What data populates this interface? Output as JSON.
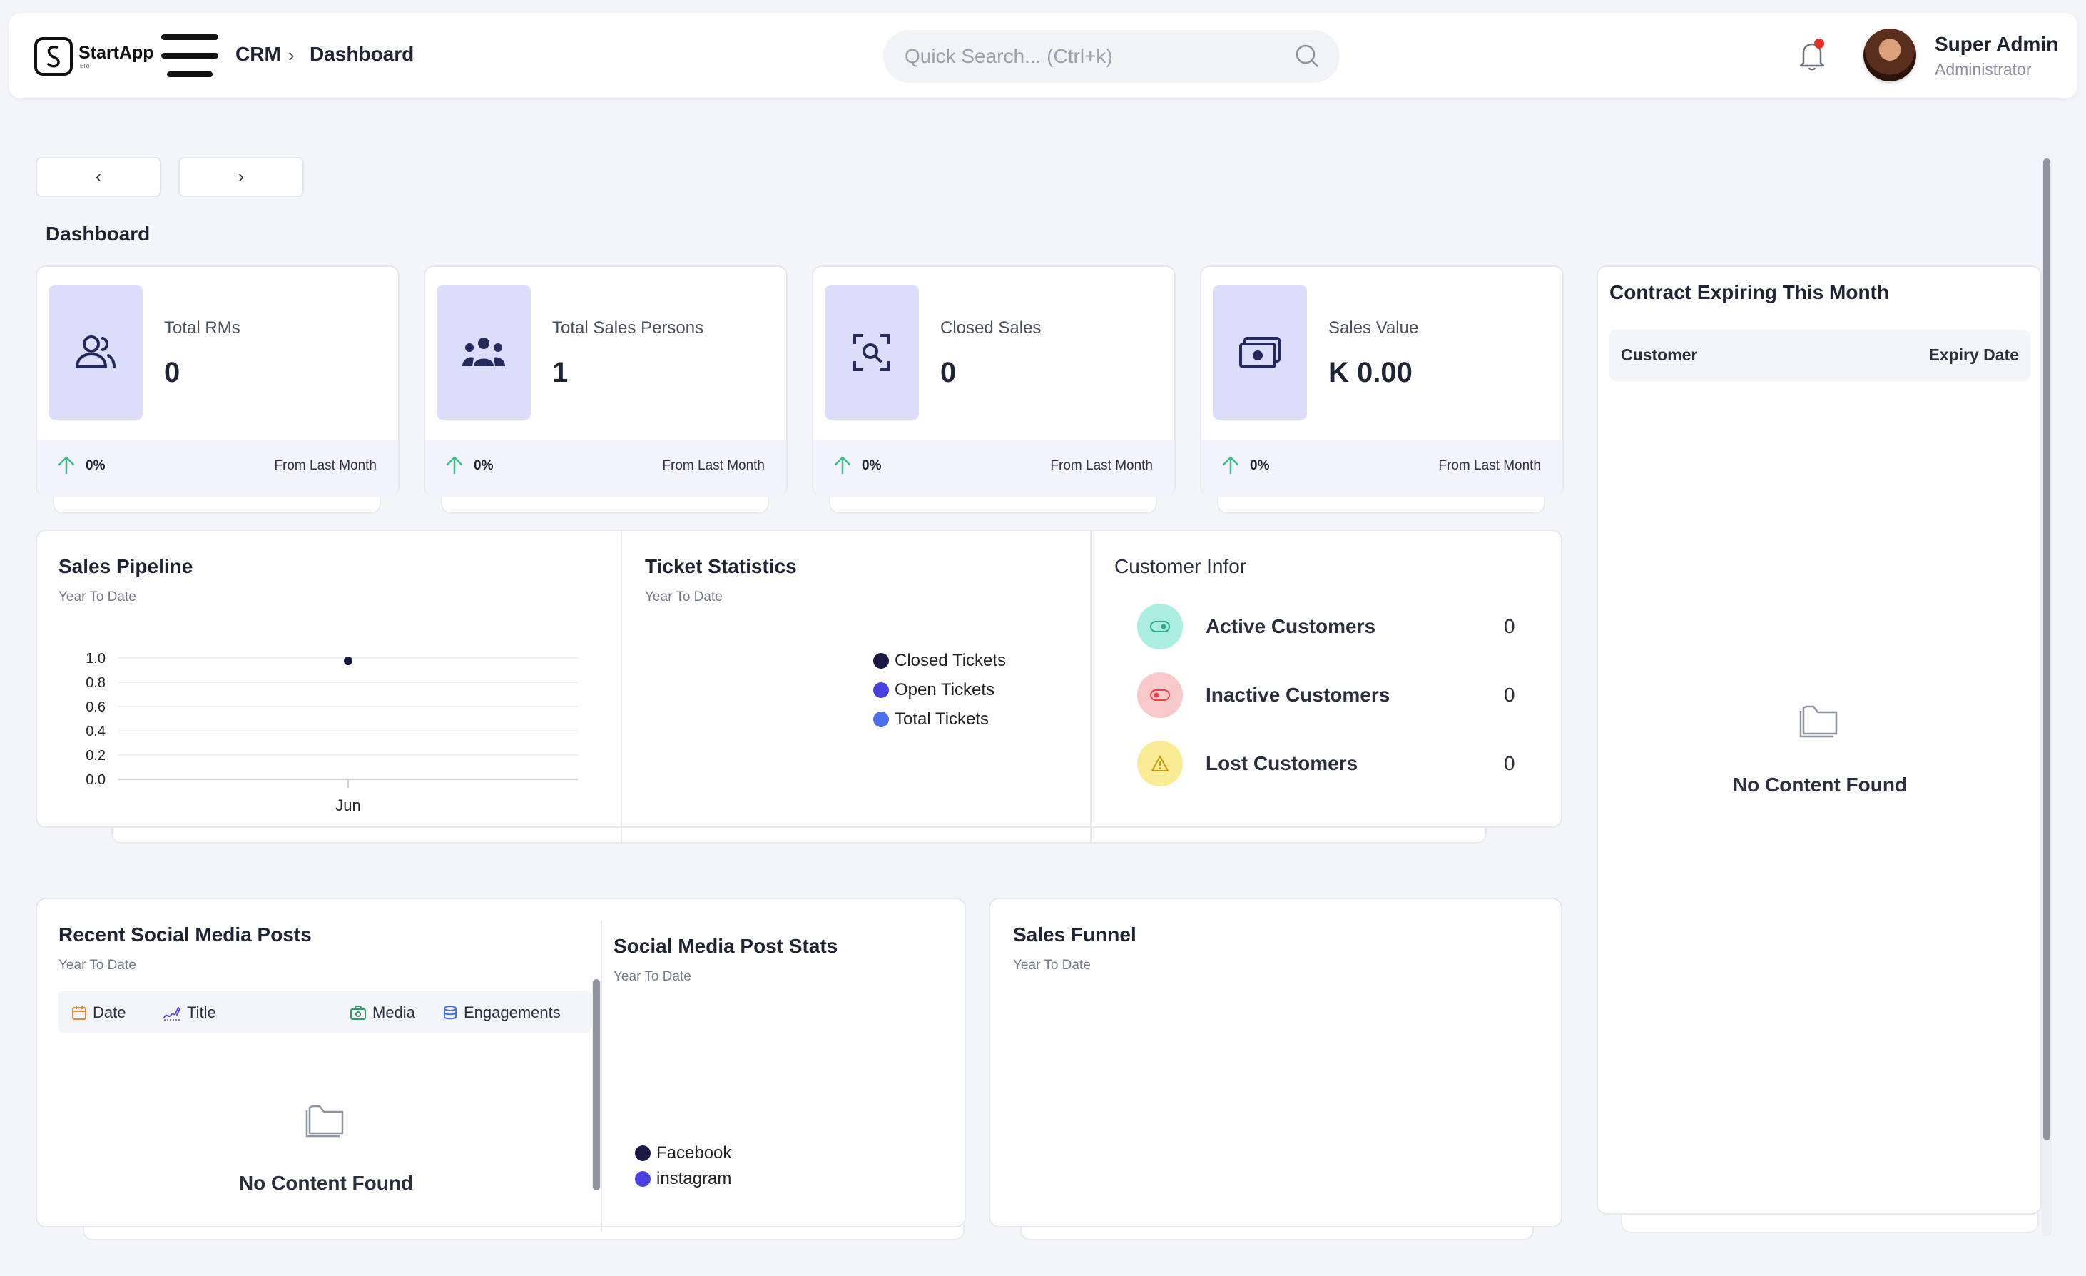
{
  "header": {
    "logo_text": "StartApp",
    "logo_sub": "ERP",
    "breadcrumb": [
      "CRM",
      "Dashboard"
    ],
    "search_placeholder": "Quick Search... (Ctrl+k)",
    "user_name": "Super Admin",
    "user_role": "Administrator"
  },
  "page": {
    "prev_label": "‹",
    "next_label": "›",
    "title": "Dashboard"
  },
  "stats": [
    {
      "label": "Total RMs",
      "value": "0",
      "pct": "0%",
      "from": "From Last Month",
      "icon": "users-icon"
    },
    {
      "label": "Total Sales Persons",
      "value": "1",
      "pct": "0%",
      "from": "From Last Month",
      "icon": "team-icon"
    },
    {
      "label": "Closed Sales",
      "value": "0",
      "pct": "0%",
      "from": "From Last Month",
      "icon": "scan-search-icon"
    },
    {
      "label": "Sales Value",
      "value": "K 0.00",
      "pct": "0%",
      "from": "From Last Month",
      "icon": "money-icon"
    }
  ],
  "sales_pipeline": {
    "title": "Sales Pipeline",
    "subtitle": "Year To Date"
  },
  "ticket_statistics": {
    "title": "Ticket Statistics",
    "subtitle": "Year To Date",
    "legend": [
      {
        "name": "Closed Tickets",
        "color": "#1b1a45"
      },
      {
        "name": "Open Tickets",
        "color": "#4a3fe0"
      },
      {
        "name": "Total Tickets",
        "color": "#4a6fe8"
      }
    ]
  },
  "customer_info": {
    "title": "Customer Infor",
    "rows": [
      {
        "name": "Active Customers",
        "count": "0",
        "bg": "#a9eee0",
        "icon": "toggle-on-icon"
      },
      {
        "name": "Inactive Customers",
        "count": "0",
        "bg": "#f9c8c8",
        "icon": "toggle-off-icon"
      },
      {
        "name": "Lost Customers",
        "count": "0",
        "bg": "#faeb95",
        "icon": "warning-icon"
      }
    ]
  },
  "contracts": {
    "title": "Contract Expiring This Month",
    "col_customer": "Customer",
    "col_expiry": "Expiry Date",
    "empty": "No Content Found"
  },
  "social_posts": {
    "title": "Recent Social Media Posts",
    "subtitle": "Year To Date",
    "columns": [
      "Date",
      "Title",
      "Media",
      "Engagements"
    ],
    "empty": "No Content Found"
  },
  "social_stats": {
    "title": "Social Media Post Stats",
    "subtitle": "Year To Date",
    "legend": [
      {
        "name": "Facebook",
        "color": "#1b1a45"
      },
      {
        "name": "instagram",
        "color": "#4a3fe0"
      }
    ]
  },
  "sales_funnel": {
    "title": "Sales Funnel",
    "subtitle": "Year To Date"
  },
  "chart_data": {
    "type": "line",
    "categories": [
      "Jun"
    ],
    "series": [
      {
        "values": [
          1
        ]
      }
    ],
    "title": "",
    "xlabel": "",
    "ylabel": "",
    "ylim": [
      0,
      1
    ],
    "yticks": [
      "0.0",
      "0.2",
      "0.4",
      "0.6",
      "0.8",
      "1.0"
    ],
    "grid": true
  }
}
